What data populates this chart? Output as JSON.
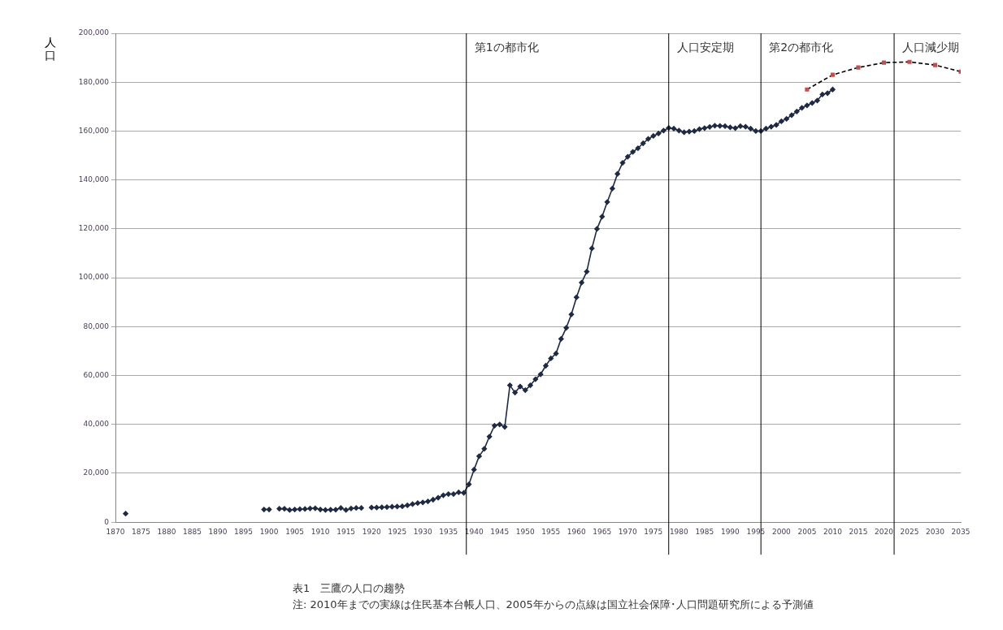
{
  "chart_data": {
    "type": "line",
    "ylabel": "人口",
    "xlim": [
      1870,
      2035
    ],
    "xticks": [
      1870,
      1875,
      1880,
      1885,
      1890,
      1895,
      1900,
      1905,
      1910,
      1915,
      1920,
      1925,
      1930,
      1935,
      1940,
      1945,
      1950,
      1955,
      1960,
      1965,
      1970,
      1975,
      1980,
      1985,
      1990,
      1995,
      2000,
      2005,
      2010,
      2015,
      2020,
      2025,
      2030,
      2035
    ],
    "ylim": [
      0,
      200000
    ],
    "yticks": [
      {
        "value": 0,
        "label": "0"
      },
      {
        "value": 20000,
        "label": "20,000"
      },
      {
        "value": 40000,
        "label": "40,000"
      },
      {
        "value": 60000,
        "label": "60,000"
      },
      {
        "value": 80000,
        "label": "80,000"
      },
      {
        "value": 100000,
        "label": "100,000"
      },
      {
        "value": 120000,
        "label": "120,000"
      },
      {
        "value": 140000,
        "label": "140,000"
      },
      {
        "value": 160000,
        "label": "160,000"
      },
      {
        "value": 180000,
        "label": "180,000"
      },
      {
        "value": 200000,
        "label": "200,000"
      }
    ],
    "grid": "y",
    "legend": false,
    "series": [
      {
        "color": "#1f2a44",
        "marker": "diamond",
        "line_style": "solid",
        "x": [
          1872,
          1873,
          1874,
          1875,
          1876,
          1877,
          1878,
          1879,
          1880,
          1881,
          1882,
          1883,
          1884,
          1885,
          1886,
          1887,
          1888,
          1889,
          1890,
          1891,
          1892,
          1893,
          1894,
          1895,
          1896,
          1897,
          1898,
          1899,
          1900,
          1901,
          1902,
          1903,
          1904,
          1905,
          1906,
          1907,
          1908,
          1909,
          1910,
          1911,
          1912,
          1913,
          1914,
          1915,
          1916,
          1917,
          1918,
          1919,
          1920,
          1921,
          1922,
          1923,
          1924,
          1925,
          1926,
          1927,
          1928,
          1929,
          1930,
          1931,
          1932,
          1933,
          1934,
          1935,
          1936,
          1937,
          1938,
          1939,
          1940,
          1941,
          1942,
          1943,
          1944,
          1945,
          1946,
          1947,
          1948,
          1949,
          1950,
          1951,
          1952,
          1953,
          1954,
          1955,
          1956,
          1957,
          1958,
          1959,
          1960,
          1961,
          1962,
          1963,
          1964,
          1965,
          1966,
          1967,
          1968,
          1969,
          1970,
          1971,
          1972,
          1973,
          1974,
          1975,
          1976,
          1977,
          1978,
          1979,
          1980,
          1981,
          1982,
          1983,
          1984,
          1985,
          1986,
          1987,
          1988,
          1989,
          1990,
          1991,
          1992,
          1993,
          1994,
          1995,
          1996,
          1997,
          1998,
          1999,
          2000,
          2001,
          2002,
          2003,
          2004,
          2005,
          2006,
          2007,
          2008,
          2009,
          2010
        ],
        "values": [
          3500,
          null,
          null,
          null,
          null,
          null,
          null,
          null,
          null,
          null,
          null,
          null,
          null,
          null,
          null,
          null,
          null,
          null,
          null,
          null,
          null,
          null,
          null,
          null,
          null,
          null,
          null,
          5200,
          5200,
          null,
          5500,
          5500,
          5000,
          5200,
          5300,
          5400,
          5600,
          5700,
          5200,
          5000,
          5100,
          5100,
          5800,
          5000,
          5600,
          5800,
          5800,
          null,
          6000,
          6000,
          6100,
          6200,
          6300,
          6400,
          6500,
          6900,
          7400,
          7800,
          8100,
          8500,
          9200,
          10000,
          11000,
          11500,
          11500,
          12200,
          12000,
          15500,
          21500,
          27000,
          30000,
          35000,
          39500,
          40000,
          39000,
          56000,
          53000,
          55500,
          54000,
          56000,
          58500,
          60500,
          64000,
          67000,
          69000,
          75000,
          79500,
          85000,
          92000,
          98000,
          102500,
          112000,
          120000,
          125000,
          131000,
          136500,
          142500,
          147000,
          149500,
          151500,
          153000,
          155000,
          156800,
          158000,
          159000,
          160200,
          161300,
          161000,
          160200,
          159500,
          159800,
          160000,
          160800,
          161200,
          161700,
          162200,
          162100,
          162000,
          161500,
          161200,
          162000,
          161800,
          161000,
          160000,
          160000,
          161000,
          161800,
          162500,
          164000,
          165000,
          166500,
          168000,
          169500,
          170500,
          171500,
          172500,
          175000,
          175500,
          177000
        ]
      },
      {
        "color": "#000000",
        "colors": [
          "#c0504d",
          "#c0504d",
          "#c0504d",
          "#c0504d",
          "#c0504d",
          "#c0504d",
          "#c0504d"
        ],
        "marker": "square",
        "line_style": "dashed",
        "x": [
          2005,
          2010,
          2015,
          2020,
          2025,
          2030,
          2035
        ],
        "values": [
          177000,
          183000,
          186000,
          188000,
          188300,
          187000,
          184300
        ]
      }
    ],
    "ref_lines": [
      {
        "axis": "x",
        "value": 1938.5,
        "label": "第1の都市化"
      },
      {
        "axis": "x",
        "value": 1978,
        "label": "人口安定期"
      },
      {
        "axis": "x",
        "value": 1996,
        "label": "第2の都市化"
      },
      {
        "axis": "x",
        "value": 2022,
        "label": "人口減少期"
      }
    ],
    "annotations": [
      "表1　三鷹の人口の趨勢",
      "注: 2010年までの実線は住民基本台帳人口、2005年からの点線は国立社会保障･人口問題研究所による予測値"
    ]
  }
}
